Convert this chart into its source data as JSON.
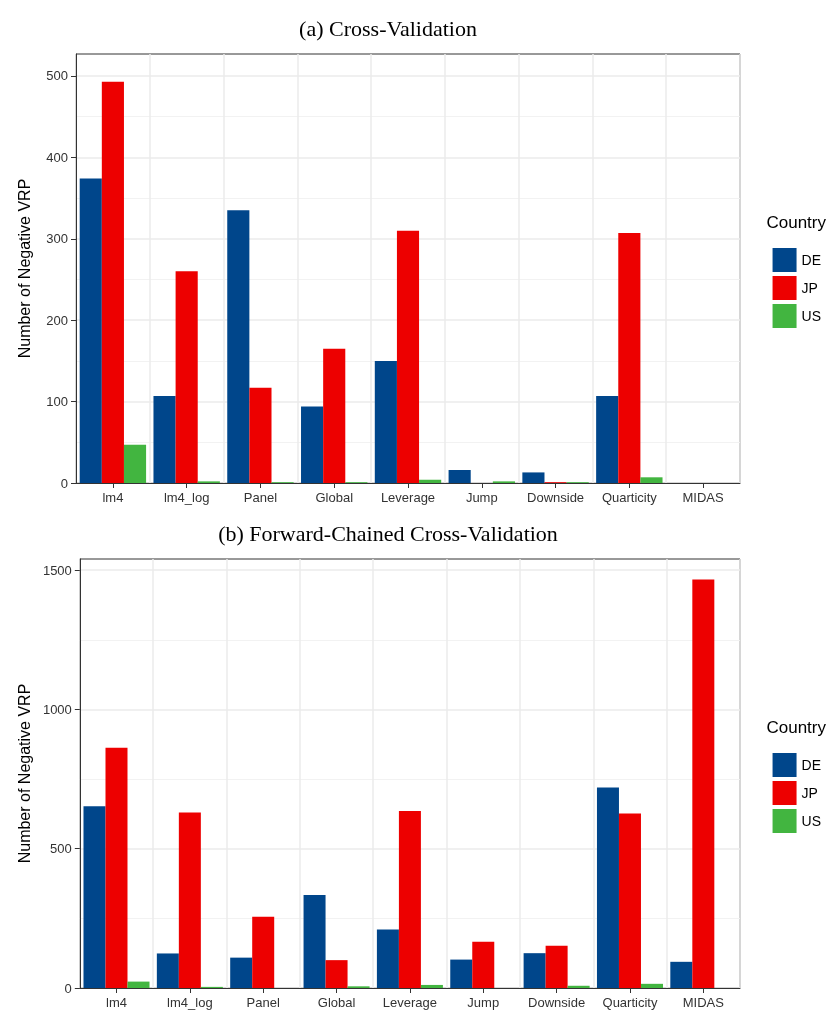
{
  "chart_data": [
    {
      "type": "bar",
      "title": "(a) Cross-Validation",
      "ylabel": "Number of Negative VRP",
      "legend_title": "Country",
      "categories": [
        "lm4",
        "lm4_log",
        "Panel",
        "Global",
        "Leverage",
        "Jump",
        "Downside",
        "Quarticity",
        "MIDAS"
      ],
      "series": [
        {
          "name": "DE",
          "color": "#00468b",
          "values": [
            374,
            107,
            335,
            94,
            150,
            16,
            13,
            107,
            0
          ]
        },
        {
          "name": "JP",
          "color": "#ed0000",
          "values": [
            493,
            260,
            117,
            165,
            310,
            0,
            1,
            307,
            0
          ]
        },
        {
          "name": "US",
          "color": "#42b540",
          "values": [
            47,
            2,
            1,
            1,
            4,
            2,
            1,
            7,
            0
          ]
        }
      ],
      "ylim": [
        0,
        527
      ],
      "yticks": [
        0,
        100,
        200,
        300,
        400,
        500
      ],
      "grid": true,
      "legend": "right"
    },
    {
      "type": "bar",
      "title": "(b) Forward-Chained Cross-Validation",
      "ylabel": "Number of Negative VRP",
      "legend_title": "Country",
      "categories": [
        "lm4",
        "lm4_log",
        "Panel",
        "Global",
        "Leverage",
        "Jump",
        "Downside",
        "Quarticity",
        "MIDAS"
      ],
      "series": [
        {
          "name": "DE",
          "color": "#00468b",
          "values": [
            652,
            124,
            109,
            334,
            210,
            102,
            125,
            720,
            94
          ]
        },
        {
          "name": "JP",
          "color": "#ed0000",
          "values": [
            862,
            630,
            256,
            100,
            635,
            166,
            152,
            626,
            1466
          ]
        },
        {
          "name": "US",
          "color": "#42b540",
          "values": [
            23,
            4,
            0,
            6,
            11,
            0,
            8,
            15,
            0
          ]
        }
      ],
      "ylim": [
        0,
        1540
      ],
      "yticks": [
        0,
        500,
        1000,
        1500
      ],
      "grid": true,
      "legend": "right"
    }
  ]
}
